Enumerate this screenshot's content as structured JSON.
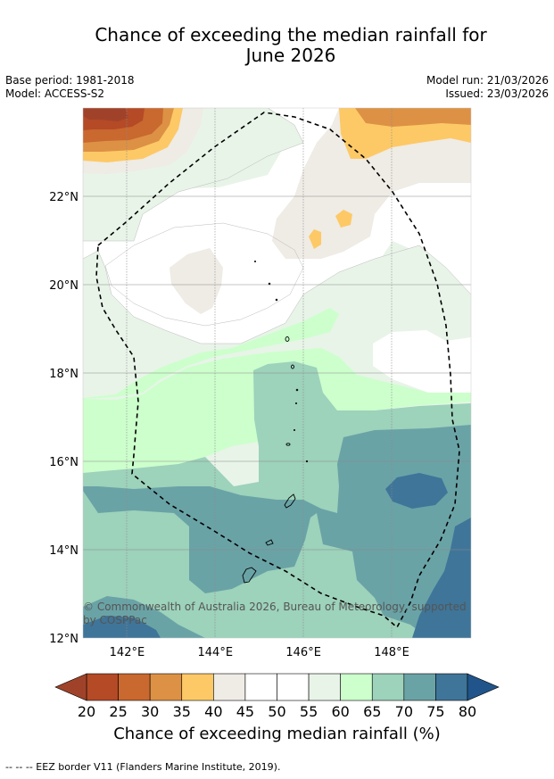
{
  "header": {
    "title_line1": "Chance of exceeding the median rainfall for",
    "title_line2": "June 2026",
    "base_period": "Base period: 1981-2018",
    "model": "Model: ACCESS-S2",
    "model_run": "Model run: 21/03/2026",
    "issued": "Issued: 23/03/2026"
  },
  "map": {
    "copyright_line1": "© Commonwealth of Australia 2026, Bureau of Meteorology, supported",
    "copyright_line2": "by COSPPac"
  },
  "chart_data": {
    "type": "heatmap",
    "title": "Chance of exceeding the median rainfall for June 2026",
    "xlabel": "",
    "ylabel": "",
    "xlim": [
      141,
      149.8
    ],
    "ylim": [
      12,
      24
    ],
    "x_ticks": [
      142,
      144,
      146,
      148
    ],
    "x_tick_labels": [
      "142°E",
      "144°E",
      "146°E",
      "148°E"
    ],
    "y_ticks": [
      12,
      14,
      16,
      18,
      20,
      22
    ],
    "y_tick_labels": [
      "12°N",
      "14°N",
      "16°N",
      "18°N",
      "20°N",
      "22°N"
    ],
    "grid": true,
    "colorbar": {
      "label": "Chance of exceeding median rainfall (%)",
      "levels": [
        20,
        25,
        30,
        35,
        40,
        45,
        50,
        55,
        60,
        65,
        70,
        75,
        80
      ],
      "level_labels": [
        "20",
        "25",
        "30",
        "35",
        "40",
        "45",
        "50",
        "55",
        "60",
        "65",
        "70",
        "75",
        "80"
      ],
      "colors": [
        "#b44a26",
        "#c9682f",
        "#dd9144",
        "#fdc966",
        "#efebe5",
        "#ffffff",
        "#ffffff",
        "#e8f4e8",
        "#ccffcc",
        "#9dd2bb",
        "#6aa3a6",
        "#3f7598"
      ],
      "under_color": "#a0422a",
      "over_color": "#21548a"
    },
    "regions": [
      {
        "name": "north-west high",
        "range": "25-45%",
        "lon": [
          141,
          143.4
        ],
        "lat": [
          22.5,
          24
        ]
      },
      {
        "name": "north-east high",
        "range": "35-45%",
        "lon": [
          146.5,
          149.8
        ],
        "lat": [
          22.8,
          24
        ]
      },
      {
        "name": "central dry patches",
        "range": "40-45%",
        "lon": [
          145.5,
          146.8
        ],
        "lat": [
          20.8,
          22
        ]
      },
      {
        "name": "southern wet",
        "range": "65-75%",
        "lon": [
          141,
          149.8
        ],
        "lat": [
          12,
          17.5
        ]
      },
      {
        "name": "south-east very wet",
        "range": "75-80%",
        "lon": [
          148,
          149.8
        ],
        "lat": [
          12,
          16.5
        ]
      }
    ]
  },
  "footnote": "--  --  -- EEZ border V11 (Flanders Marine Institute, 2019)."
}
